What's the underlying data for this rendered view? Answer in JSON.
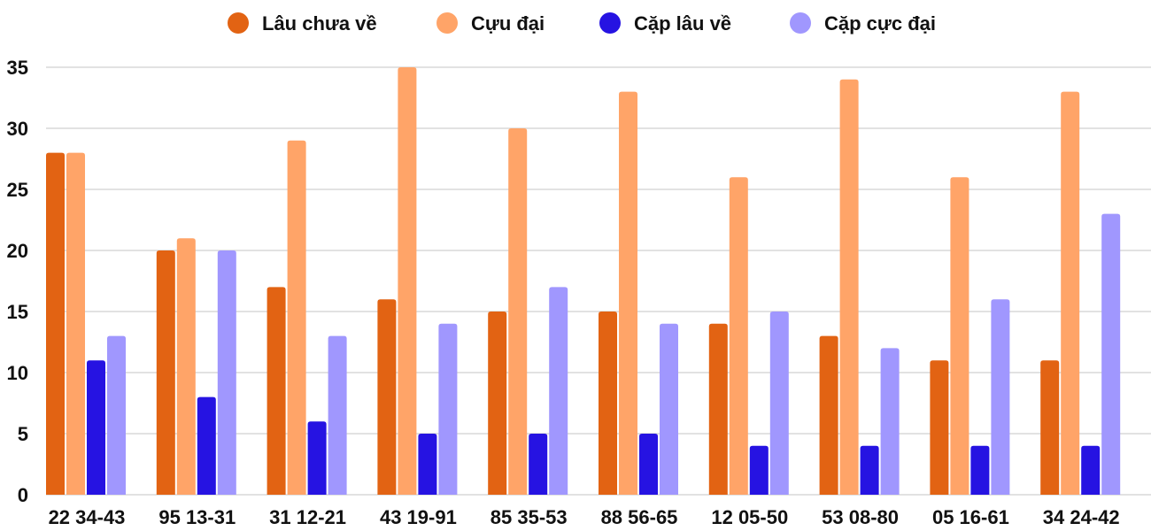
{
  "chart_data": {
    "type": "bar",
    "title": "",
    "xlabel": "",
    "ylabel": "",
    "ylim": [
      0,
      35
    ],
    "yticks": [
      0,
      5,
      10,
      15,
      20,
      25,
      30,
      35
    ],
    "grid": true,
    "legend_position": "top",
    "categories": [
      "22 34-43",
      "95 13-31",
      "31 12-21",
      "43 19-91",
      "85 35-53",
      "88 56-65",
      "12 05-50",
      "53 08-80",
      "05 16-61",
      "34 24-42"
    ],
    "series": [
      {
        "name": "Lâu chưa về",
        "color": "#E26313",
        "values": [
          28,
          20,
          17,
          16,
          15,
          15,
          14,
          13,
          11,
          11
        ]
      },
      {
        "name": "Cựu đại",
        "color": "#FFA468",
        "values": [
          28,
          21,
          29,
          35,
          30,
          33,
          26,
          34,
          26,
          33
        ]
      },
      {
        "name": "Cặp lâu về",
        "color": "#2613E2",
        "values": [
          11,
          8,
          6,
          5,
          5,
          5,
          4,
          4,
          4,
          4
        ]
      },
      {
        "name": "Cặp cực đại",
        "color": "#A097FE",
        "values": [
          13,
          20,
          13,
          14,
          17,
          14,
          15,
          12,
          16,
          23
        ]
      }
    ]
  }
}
